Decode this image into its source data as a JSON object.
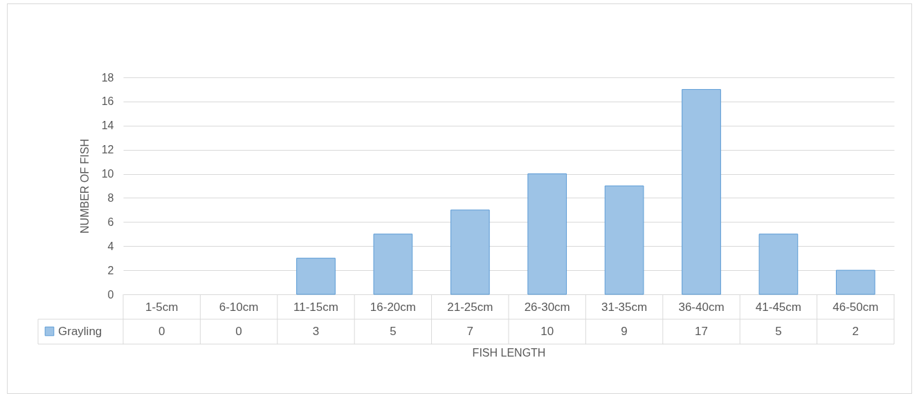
{
  "chart_data": {
    "type": "bar",
    "xlabel": "FISH LENGTH",
    "ylabel": "NUMBER OF FISH",
    "categories": [
      "1-5cm",
      "6-10cm",
      "11-15cm",
      "16-20cm",
      "21-25cm",
      "26-30cm",
      "31-35cm",
      "36-40cm",
      "41-45cm",
      "46-50cm"
    ],
    "series": [
      {
        "name": "Grayling",
        "color": "#9dc3e6",
        "values": [
          0,
          0,
          3,
          5,
          7,
          10,
          9,
          17,
          5,
          2
        ]
      }
    ],
    "ylim": [
      0,
      18
    ],
    "yticks": [
      0,
      2,
      4,
      6,
      8,
      10,
      12,
      14,
      16,
      18
    ],
    "grid": "y",
    "legend": "bottom left",
    "data_labels": true
  }
}
